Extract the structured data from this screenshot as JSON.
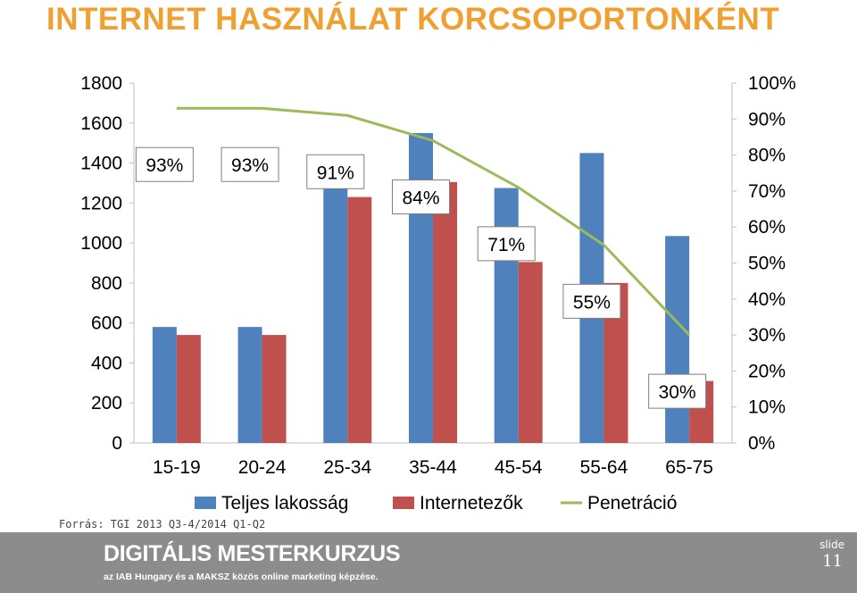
{
  "page": {
    "title": "INTERNET HASZNÁLAT KORCSOPORTONKÉNT",
    "title_color": "#f0a030",
    "source": "Forrás: TGI 2013 Q3-4/2014 Q1-Q2"
  },
  "footer": {
    "brand": "DIGITÁLIS MESTERKURZUS",
    "tagline": "az IAB Hungary és a MAKSZ közös online marketing képzése.",
    "slide_label": "slide",
    "slide_number": "11",
    "background": "#8c8c8c"
  },
  "chart_data": {
    "type": "bar",
    "categories": [
      "15-19",
      "20-24",
      "25-34",
      "35-44",
      "45-54",
      "55-64",
      "65-75"
    ],
    "series": [
      {
        "name": "Teljes lakosság",
        "kind": "bar",
        "axis": "left",
        "color": "#4f81bd",
        "values": [
          580,
          580,
          1300,
          1550,
          1275,
          1450,
          1035
        ]
      },
      {
        "name": "Internetezők",
        "kind": "bar",
        "axis": "left",
        "color": "#c0504d",
        "values": [
          540,
          540,
          1230,
          1305,
          905,
          800,
          310
        ]
      },
      {
        "name": "Penetráció",
        "kind": "line",
        "axis": "right",
        "color": "#9bbb59",
        "values": [
          93,
          93,
          91,
          84,
          71,
          55,
          30
        ]
      }
    ],
    "data_labels": [
      "93%",
      "93%",
      "91%",
      "84%",
      "71%",
      "55%",
      "30%"
    ],
    "y_left": {
      "min": 0,
      "max": 1800,
      "ticks": [
        "0",
        "200",
        "400",
        "600",
        "800",
        "1000",
        "1200",
        "1400",
        "1600",
        "1800"
      ]
    },
    "y_right": {
      "min": 0,
      "max": 100,
      "ticks": [
        "0%",
        "10%",
        "20%",
        "30%",
        "40%",
        "50%",
        "60%",
        "70%",
        "80%",
        "90%",
        "100%"
      ]
    },
    "grid": false,
    "legend_position": "bottom"
  }
}
